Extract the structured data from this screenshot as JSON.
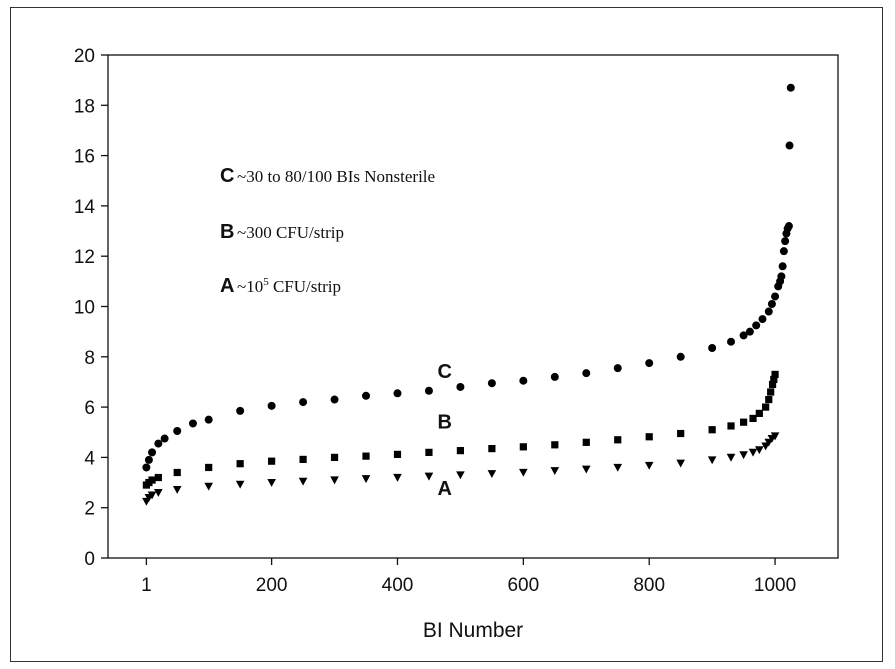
{
  "chart_data": {
    "type": "scatter",
    "xlabel": "BI Number",
    "ylabel": "",
    "xlim": [
      -60,
      1100
    ],
    "ylim": [
      0,
      20
    ],
    "x_ticks": [
      1,
      200,
      400,
      600,
      800,
      1000
    ],
    "y_ticks": [
      0,
      2,
      4,
      6,
      8,
      10,
      12,
      14,
      16,
      18,
      20
    ],
    "grid": false,
    "legend_entries": [
      {
        "key": "C",
        "prefix": "~30 to 80/100 BIs Nonsterile",
        "sup": "",
        "suffix": ""
      },
      {
        "key": "B",
        "prefix": "~300 CFU/strip",
        "sup": "",
        "suffix": ""
      },
      {
        "key": "A",
        "prefix": "~10",
        "sup": "5",
        "suffix": " CFU/strip"
      }
    ],
    "series": [
      {
        "name": "C",
        "x": [
          1,
          5,
          10,
          20,
          30,
          50,
          75,
          100,
          150,
          200,
          250,
          300,
          350,
          400,
          450,
          500,
          550,
          600,
          650,
          700,
          750,
          800,
          850,
          900,
          930,
          950,
          960,
          970,
          980,
          990,
          995,
          1000,
          1005,
          1008,
          1010,
          1012,
          1014,
          1016,
          1018,
          1020,
          1022,
          1023,
          1025
        ],
        "y": [
          3.6,
          3.9,
          4.2,
          4.55,
          4.75,
          5.05,
          5.35,
          5.5,
          5.85,
          6.05,
          6.2,
          6.3,
          6.45,
          6.55,
          6.65,
          6.8,
          6.95,
          7.05,
          7.2,
          7.35,
          7.55,
          7.75,
          8.0,
          8.35,
          8.6,
          8.85,
          9.0,
          9.25,
          9.5,
          9.8,
          10.1,
          10.4,
          10.8,
          11.0,
          11.2,
          11.6,
          12.2,
          12.6,
          12.9,
          13.1,
          13.2,
          16.4,
          18.7
        ]
      },
      {
        "name": "B",
        "x": [
          1,
          5,
          10,
          20,
          50,
          100,
          150,
          200,
          250,
          300,
          350,
          400,
          450,
          500,
          550,
          600,
          650,
          700,
          750,
          800,
          850,
          900,
          930,
          950,
          965,
          975,
          985,
          990,
          993,
          996,
          998,
          1000
        ],
        "y": [
          2.9,
          3.0,
          3.1,
          3.2,
          3.4,
          3.6,
          3.75,
          3.85,
          3.92,
          4.0,
          4.05,
          4.12,
          4.2,
          4.27,
          4.35,
          4.42,
          4.5,
          4.6,
          4.7,
          4.82,
          4.95,
          5.1,
          5.25,
          5.4,
          5.55,
          5.75,
          6.0,
          6.3,
          6.6,
          6.9,
          7.1,
          7.3
        ]
      },
      {
        "name": "A",
        "x": [
          1,
          5,
          10,
          20,
          50,
          100,
          150,
          200,
          250,
          300,
          350,
          400,
          450,
          500,
          550,
          600,
          650,
          700,
          750,
          800,
          850,
          900,
          930,
          950,
          965,
          975,
          985,
          990,
          995,
          1000
        ],
        "y": [
          2.25,
          2.4,
          2.5,
          2.6,
          2.72,
          2.85,
          2.93,
          3.0,
          3.05,
          3.1,
          3.15,
          3.2,
          3.25,
          3.3,
          3.35,
          3.4,
          3.47,
          3.53,
          3.6,
          3.68,
          3.77,
          3.9,
          4.0,
          4.1,
          4.2,
          4.3,
          4.45,
          4.6,
          4.75,
          4.85
        ]
      }
    ]
  }
}
